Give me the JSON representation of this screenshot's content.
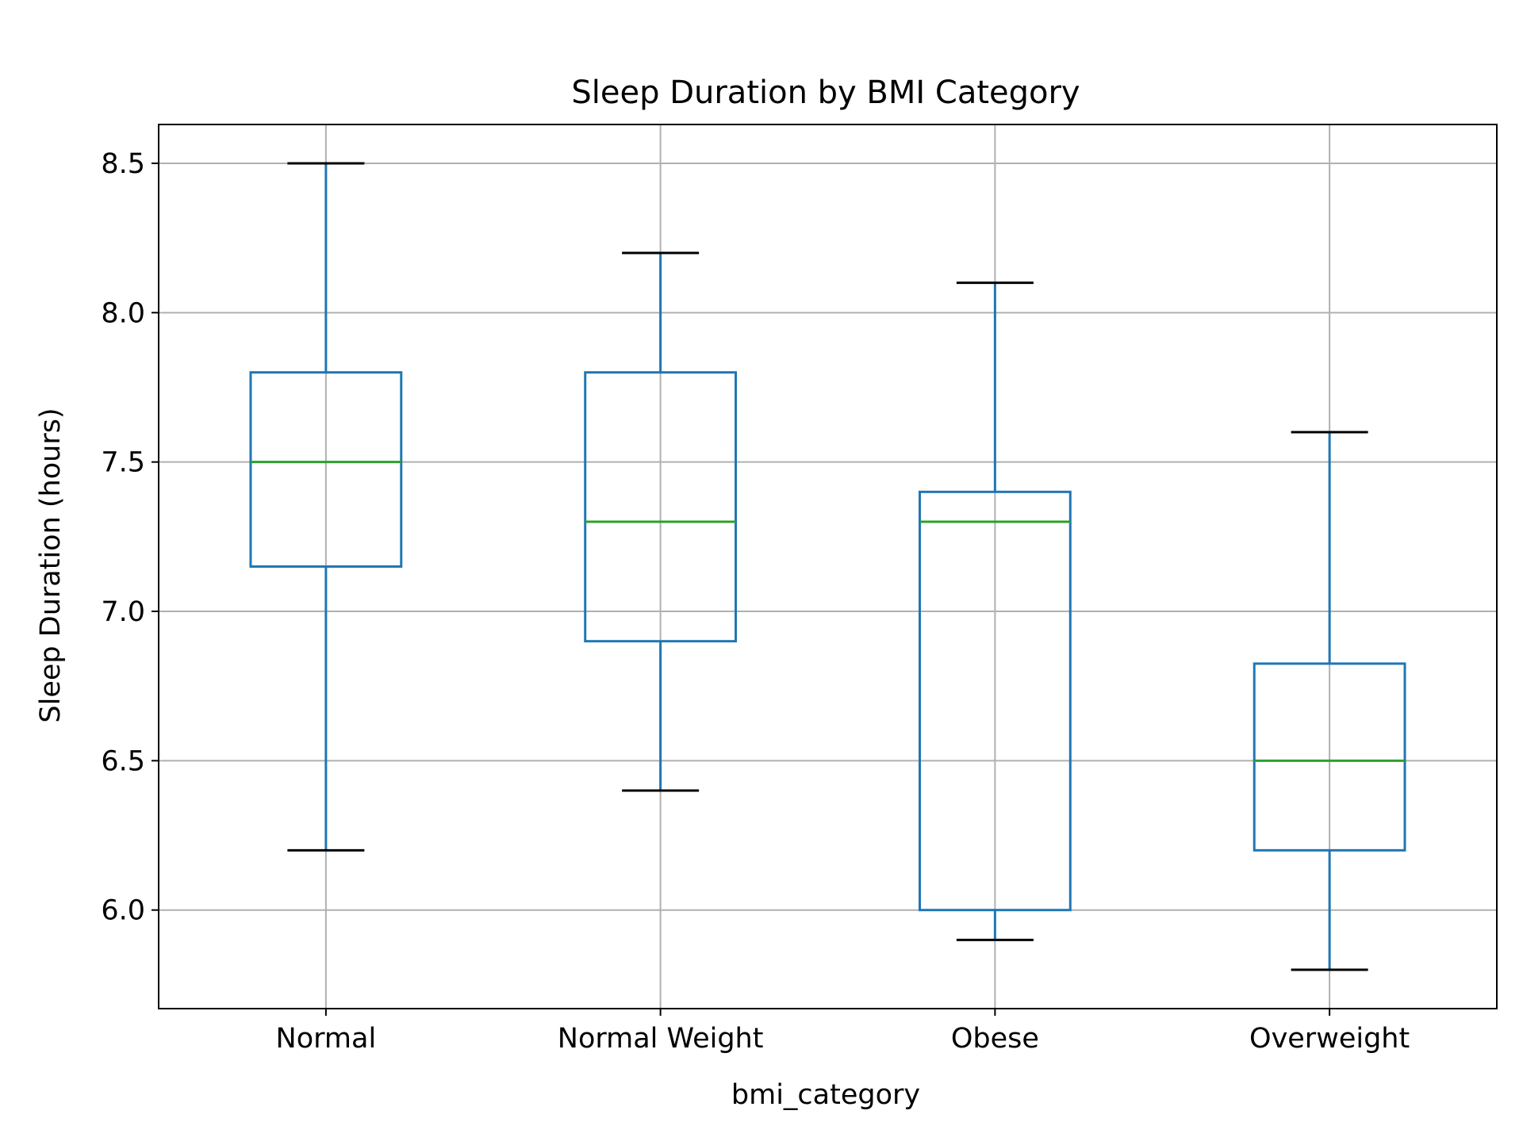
{
  "chart_data": {
    "type": "box",
    "title": "Sleep Duration by BMI Category",
    "xlabel": "bmi_category",
    "ylabel": "Sleep Duration (hours)",
    "ylim": [
      5.67,
      8.63
    ],
    "yticks": [
      6.0,
      6.5,
      7.0,
      7.5,
      8.0,
      8.5
    ],
    "ytick_labels": [
      "6.0",
      "6.5",
      "7.0",
      "7.5",
      "8.0",
      "8.5"
    ],
    "grid": true,
    "categories": [
      "Normal",
      "Normal Weight",
      "Obese",
      "Overweight"
    ],
    "boxes": [
      {
        "category": "Normal",
        "whisker_low": 6.2,
        "q1": 7.15,
        "median": 7.5,
        "q3": 7.8,
        "whisker_high": 8.5
      },
      {
        "category": "Normal Weight",
        "whisker_low": 6.4,
        "q1": 6.9,
        "median": 7.3,
        "q3": 7.8,
        "whisker_high": 8.2
      },
      {
        "category": "Obese",
        "whisker_low": 5.9,
        "q1": 6.0,
        "median": 7.3,
        "q3": 7.4,
        "whisker_high": 8.1
      },
      {
        "category": "Overweight",
        "whisker_low": 5.8,
        "q1": 6.2,
        "median": 6.5,
        "q3": 6.825,
        "whisker_high": 7.6
      }
    ],
    "colors": {
      "box": "#1f77b4",
      "median": "#2ca02c",
      "cap": "#000000",
      "grid": "#b0b0b0",
      "axes": "#000000"
    }
  }
}
